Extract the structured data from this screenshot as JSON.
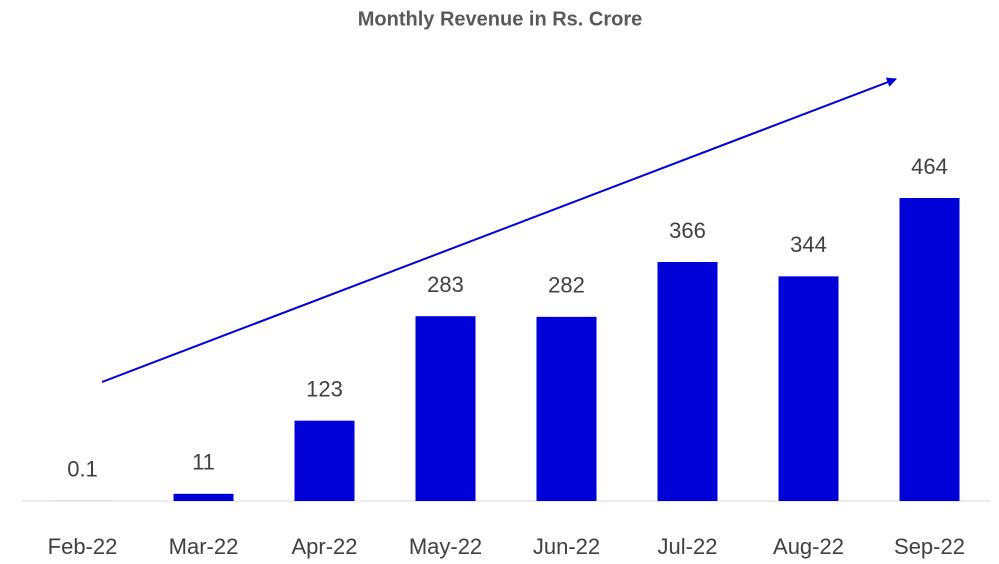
{
  "chart_data": {
    "type": "bar",
    "title": "Monthly Revenue in Rs. Crore",
    "categories": [
      "Feb-22",
      "Mar-22",
      "Apr-22",
      "May-22",
      "Jun-22",
      "Jul-22",
      "Aug-22",
      "Sep-22"
    ],
    "values": [
      0.1,
      11,
      123,
      283,
      282,
      366,
      344,
      464
    ],
    "color": "#0000d8"
  }
}
